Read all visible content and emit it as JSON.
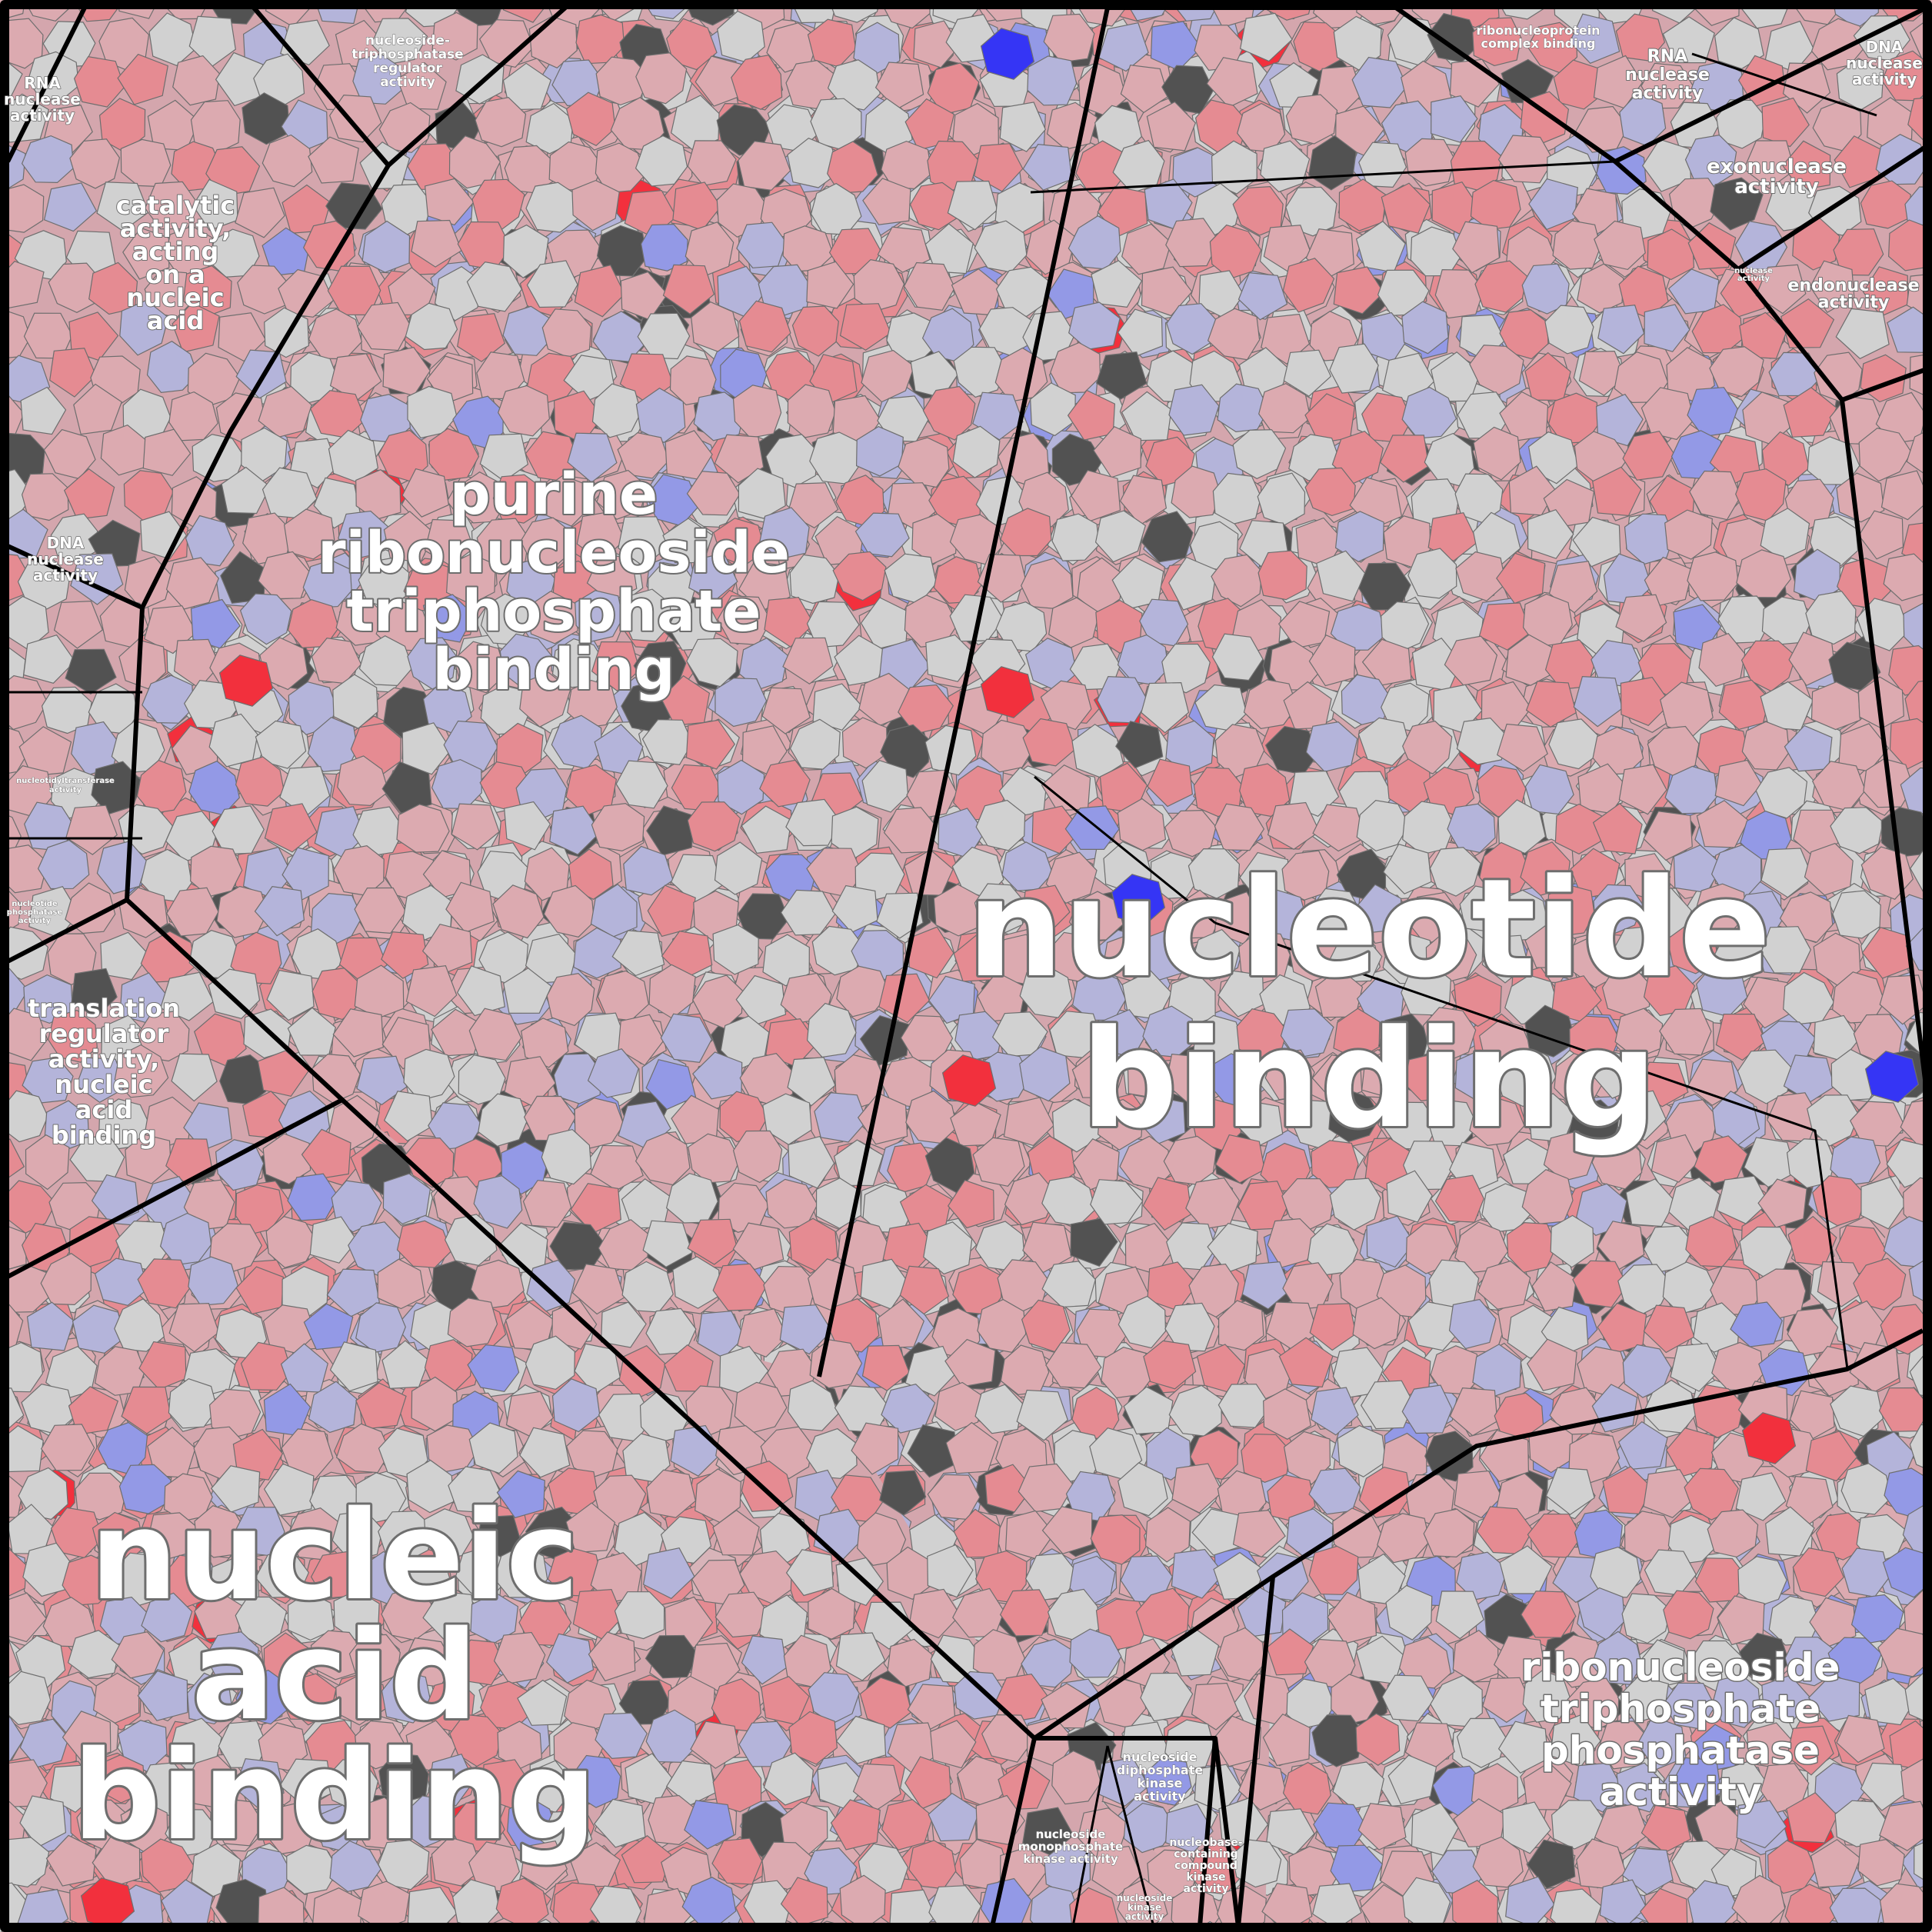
{
  "palette": {
    "background": "#d4a6ad",
    "strong_red": "#f2303d",
    "red": "#e58b92",
    "pink": "#dcaab0",
    "light_pink": "#d8b4b9",
    "gray": "#d1d1d1",
    "light_blue": "#b4b4da",
    "blue": "#9399e6",
    "strong_blue": "#3535f5",
    "dark": "#525252",
    "cell_border": "#6e6e6e",
    "region_border": "#000000"
  },
  "regions": [
    {
      "id": "nucleotide-binding",
      "label": [
        "nucleotide",
        "binding"
      ]
    },
    {
      "id": "nucleic-acid-binding",
      "label": [
        "nucleic",
        "acid",
        "binding"
      ]
    },
    {
      "id": "purine-ribonucleoside-triphosphate-binding",
      "label": [
        "purine",
        "ribonucleoside",
        "triphosphate",
        "binding"
      ]
    },
    {
      "id": "ribonucleoside-triphosphate-phosphatase-activity",
      "label": [
        "ribonucleoside",
        "triphosphate",
        "phosphatase",
        "activity"
      ]
    },
    {
      "id": "catalytic-activity-acting-on-a-nucleic-acid",
      "label": [
        "catalytic",
        "activity,",
        "acting",
        "on a",
        "nucleic",
        "acid"
      ]
    },
    {
      "id": "translation-regulator-activity-nucleic-acid-binding",
      "label": [
        "translation",
        "regulator",
        "activity,",
        "nucleic",
        "acid",
        "binding"
      ]
    },
    {
      "id": "exonuclease-activity",
      "label": [
        "exonuclease",
        "activity"
      ]
    },
    {
      "id": "endonuclease-activity",
      "label": [
        "endonuclease",
        "activity"
      ]
    },
    {
      "id": "rna-nuclease-activity-top",
      "label": [
        "RNA",
        "nuclease",
        "activity"
      ]
    },
    {
      "id": "rna-nuclease-activity-left",
      "label": [
        "RNA",
        "nuclease",
        "activity"
      ]
    },
    {
      "id": "dna-nuclease-activity-top",
      "label": [
        "DNA",
        "nuclease",
        "activity"
      ]
    },
    {
      "id": "dna-nuclease-activity-left",
      "label": [
        "DNA",
        "nuclease",
        "activity"
      ]
    },
    {
      "id": "ribonucleoprotein-complex-binding",
      "label": [
        "ribonucleoprotein",
        "complex binding"
      ]
    },
    {
      "id": "nucleoside-triphosphatase-regulator-activity",
      "label": [
        "nucleoside-",
        "triphosphatase",
        "regulator",
        "activity"
      ]
    },
    {
      "id": "nucleoside-diphosphate-kinase-activity",
      "label": [
        "nucleoside",
        "diphosphate",
        "kinase",
        "activity"
      ]
    },
    {
      "id": "nucleoside-monophosphate-kinase-activity",
      "label": [
        "nucleoside",
        "monophosphate",
        "kinase activity"
      ]
    },
    {
      "id": "nucleobase-containing-compound-kinase-activity",
      "label": [
        "nucleobase-",
        "containing",
        "compound",
        "kinase",
        "activity"
      ]
    },
    {
      "id": "nucleoside-kinase-activity",
      "label": [
        "nucleoside",
        "kinase",
        "activity"
      ]
    },
    {
      "id": "nucleotidyltransferase-activity",
      "label": [
        "nucleotidyltransferase",
        "activity"
      ]
    },
    {
      "id": "nucleotide-phosphatase-activity",
      "label": [
        "nucleotide",
        "phosphatase",
        "activity"
      ]
    },
    {
      "id": "nuclease-activity",
      "label": [
        "nuclease",
        "activity"
      ]
    }
  ]
}
